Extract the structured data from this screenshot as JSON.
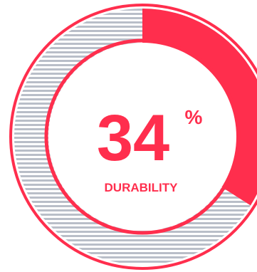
{
  "chart_data": {
    "type": "pie",
    "series": [
      {
        "name": "",
        "value": 34
      },
      {
        "name": "",
        "value": 66
      }
    ],
    "value": 34,
    "value_text": "34",
    "unit": "%",
    "label": "DURABILITY",
    "colors": {
      "accent": "#ff2e4d",
      "remaining_stripe": "#b9bec8",
      "background": "#ffffff"
    }
  }
}
